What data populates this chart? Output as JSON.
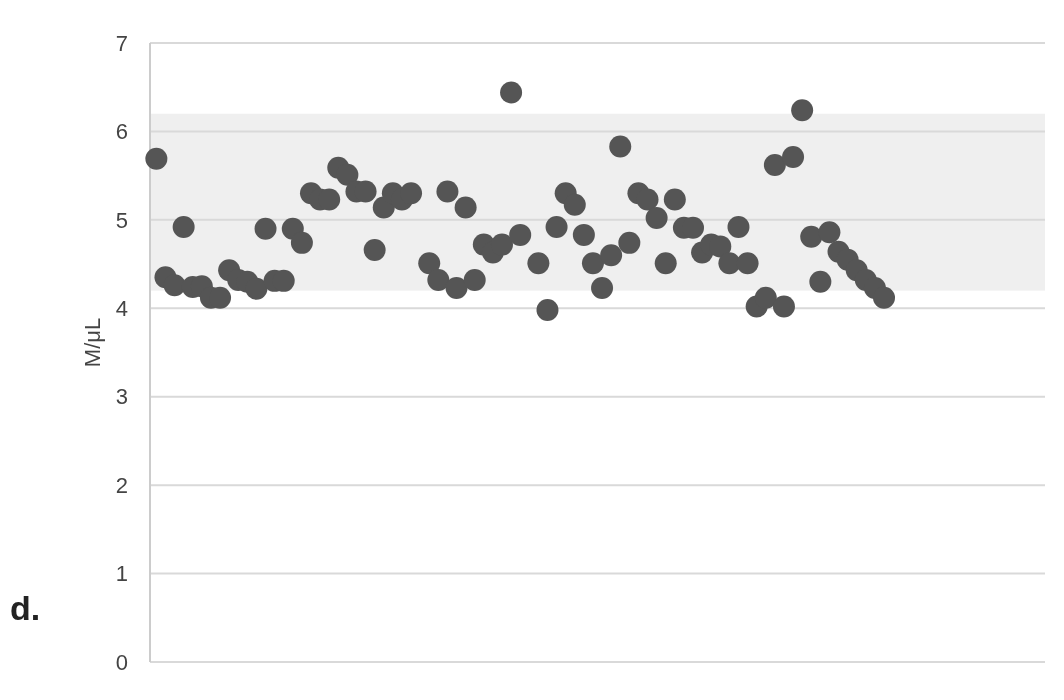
{
  "chart_data": {
    "type": "scatter",
    "ylabel": "M/μL",
    "annotations": [
      "d."
    ],
    "categories": [
      null,
      null,
      null,
      null,
      null,
      null,
      null,
      null,
      null,
      null,
      null,
      null,
      null,
      null,
      null,
      null,
      null,
      null,
      null,
      null,
      null,
      null,
      null,
      null,
      null,
      null,
      null,
      null,
      null,
      null,
      null,
      null,
      null,
      null,
      null,
      null,
      null,
      null,
      null,
      null,
      null,
      null,
      null,
      null,
      null,
      null,
      null,
      null,
      null,
      null,
      null,
      null,
      null,
      null,
      null,
      null,
      null,
      null,
      null,
      null,
      null,
      null,
      null,
      null,
      null,
      null,
      null,
      null,
      null,
      null,
      null,
      null,
      null,
      null,
      null,
      null,
      null,
      null,
      null,
      null,
      null,
      null,
      null,
      null,
      null,
      null,
      null,
      null,
      null,
      null,
      null,
      null,
      null,
      null,
      null,
      null,
      null,
      null
    ],
    "series": [
      {
        "color": "#555555",
        "values": [
          5.69,
          4.35,
          4.26,
          4.92,
          4.24,
          4.25,
          4.12,
          4.12,
          4.43,
          4.32,
          4.3,
          4.22,
          4.9,
          4.31,
          4.31,
          4.9,
          4.74,
          5.3,
          5.23,
          5.23,
          5.59,
          5.51,
          5.32,
          5.32,
          4.66,
          5.14,
          5.3,
          5.23,
          5.3,
          null,
          4.51,
          4.32,
          5.32,
          4.23,
          5.14,
          4.32,
          4.72,
          4.63,
          4.72,
          6.44,
          4.83,
          null,
          4.51,
          3.98,
          4.92,
          5.3,
          5.17,
          4.83,
          4.51,
          4.23,
          4.6,
          5.83,
          4.74,
          5.3,
          5.23,
          5.02,
          4.51,
          5.23,
          4.91,
          4.91,
          4.63,
          4.72,
          4.7,
          4.51,
          4.92,
          4.51,
          4.02,
          4.12,
          5.62,
          4.02,
          5.71,
          6.24,
          4.81,
          4.3,
          4.86,
          4.64,
          4.55,
          4.43,
          4.32,
          4.23,
          4.12,
          null,
          null,
          null,
          null,
          null,
          null,
          null,
          null,
          null,
          null,
          null,
          null,
          null,
          null,
          null,
          null,
          null
        ]
      }
    ],
    "ylim": [
      0,
      7
    ],
    "yticks": [
      0,
      1,
      2,
      3,
      4,
      5,
      6,
      7
    ],
    "grid": "y",
    "marker": "circle",
    "bands": [
      {
        "axis": "y",
        "from": 4.2,
        "to": 6.2,
        "color": "#efefef"
      }
    ]
  }
}
